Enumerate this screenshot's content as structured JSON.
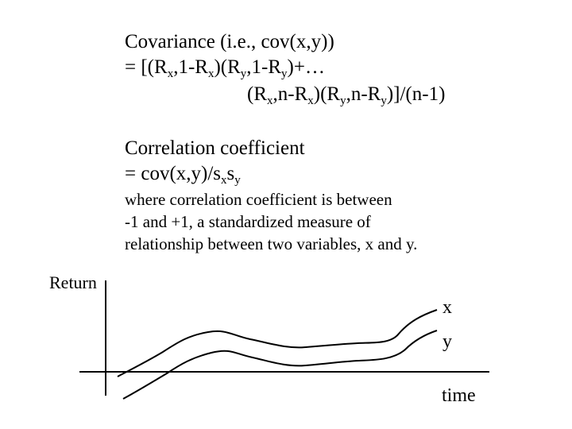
{
  "formula": {
    "cov_title": "Covariance (i.e., cov(x,y))",
    "cov_line1": {
      "parts": [
        "= [(R",
        "x",
        ",1",
        "-R",
        "x",
        ")(R",
        "y",
        ",1",
        "-R",
        "y",
        ")+…"
      ]
    },
    "cov_line2": {
      "parts": [
        "(R",
        "x",
        ",n",
        "-R",
        "x",
        ")(R",
        "y",
        ",n",
        "-R",
        "y",
        ")]/(n-1)"
      ]
    },
    "corr_title": "Correlation coefficient",
    "corr_line": {
      "parts": [
        "= cov(x,y)/s",
        "x",
        "s",
        "y"
      ]
    },
    "note_lines": [
      "where correlation coefficient is between",
      "-1 and +1, a standardized measure of",
      "relationship between two variables, x and y."
    ]
  },
  "graph": {
    "y_axis_label": "Return",
    "x_axis_label": "time",
    "series_labels": [
      "x",
      "y"
    ],
    "line_color": "#000000"
  }
}
